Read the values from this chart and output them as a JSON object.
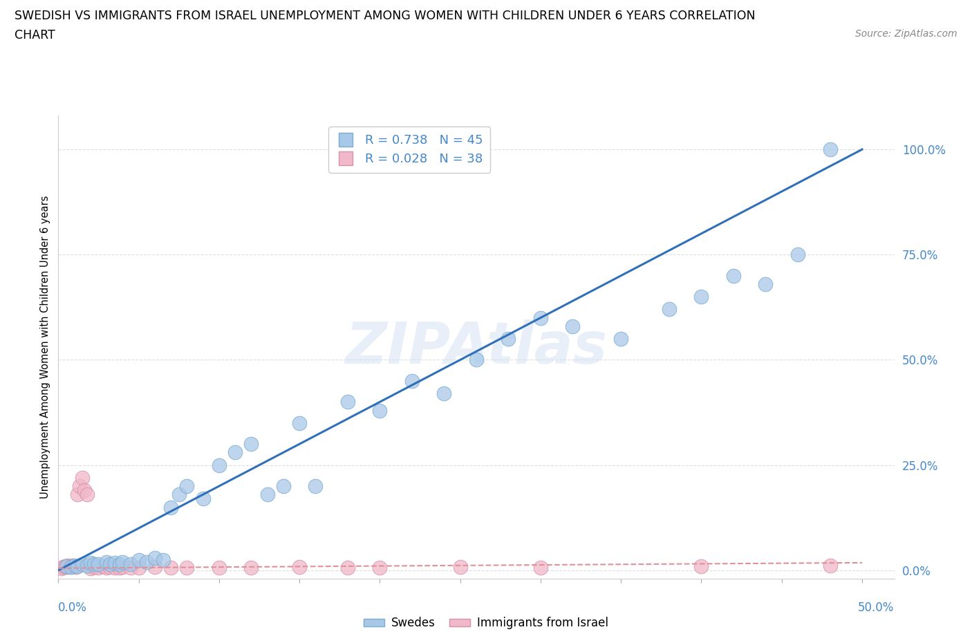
{
  "title_line1": "SWEDISH VS IMMIGRANTS FROM ISRAEL UNEMPLOYMENT AMONG WOMEN WITH CHILDREN UNDER 6 YEARS CORRELATION",
  "title_line2": "CHART",
  "source": "Source: ZipAtlas.com",
  "ylabel": "Unemployment Among Women with Children Under 6 years",
  "ytick_labels": [
    "0.0%",
    "25.0%",
    "50.0%",
    "75.0%",
    "100.0%"
  ],
  "ytick_values": [
    0.0,
    0.25,
    0.5,
    0.75,
    1.0
  ],
  "xtick_labels": [
    "0.0%",
    "50.0%"
  ],
  "xlim": [
    0.0,
    0.52
  ],
  "ylim": [
    -0.02,
    1.08
  ],
  "watermark": "ZIPAtlas",
  "legend_r_swedes": "0.738",
  "legend_n_swedes": "45",
  "legend_r_israel": "0.028",
  "legend_n_israel": "38",
  "swedes_color": "#a8c8e8",
  "israel_color": "#f0b8c8",
  "swedes_edge_color": "#7aacd0",
  "israel_edge_color": "#d890a8",
  "swedes_line_color": "#3070b8",
  "israel_line_color": "#e0909a",
  "swedes_x": [
    0.005,
    0.008,
    0.01,
    0.012,
    0.015,
    0.018,
    0.02,
    0.022,
    0.025,
    0.03,
    0.032,
    0.035,
    0.038,
    0.04,
    0.045,
    0.05,
    0.055,
    0.06,
    0.065,
    0.07,
    0.075,
    0.08,
    0.09,
    0.1,
    0.11,
    0.12,
    0.13,
    0.14,
    0.15,
    0.16,
    0.18,
    0.2,
    0.22,
    0.24,
    0.26,
    0.28,
    0.3,
    0.32,
    0.35,
    0.38,
    0.4,
    0.42,
    0.44,
    0.46,
    0.48
  ],
  "swedes_y": [
    0.01,
    0.008,
    0.012,
    0.01,
    0.015,
    0.012,
    0.018,
    0.015,
    0.015,
    0.02,
    0.015,
    0.018,
    0.015,
    0.02,
    0.015,
    0.025,
    0.02,
    0.03,
    0.025,
    0.15,
    0.18,
    0.2,
    0.17,
    0.25,
    0.28,
    0.3,
    0.18,
    0.2,
    0.35,
    0.2,
    0.4,
    0.38,
    0.45,
    0.42,
    0.5,
    0.55,
    0.6,
    0.58,
    0.55,
    0.62,
    0.65,
    0.7,
    0.68,
    0.75,
    1.0
  ],
  "israel_x": [
    0.002,
    0.003,
    0.004,
    0.005,
    0.006,
    0.007,
    0.008,
    0.009,
    0.01,
    0.011,
    0.012,
    0.013,
    0.015,
    0.016,
    0.018,
    0.02,
    0.022,
    0.025,
    0.028,
    0.03,
    0.032,
    0.035,
    0.038,
    0.04,
    0.045,
    0.05,
    0.06,
    0.07,
    0.08,
    0.1,
    0.12,
    0.15,
    0.18,
    0.2,
    0.25,
    0.3,
    0.4,
    0.48
  ],
  "israel_y": [
    0.005,
    0.008,
    0.01,
    0.008,
    0.012,
    0.008,
    0.01,
    0.012,
    0.01,
    0.008,
    0.18,
    0.2,
    0.22,
    0.19,
    0.18,
    0.005,
    0.008,
    0.007,
    0.01,
    0.006,
    0.008,
    0.007,
    0.006,
    0.008,
    0.007,
    0.006,
    0.008,
    0.006,
    0.007,
    0.006,
    0.007,
    0.008,
    0.006,
    0.007,
    0.008,
    0.007,
    0.01,
    0.012
  ],
  "swedes_line_x": [
    0.0,
    0.5
  ],
  "swedes_line_y": [
    0.0,
    1.0
  ],
  "israel_line_x": [
    0.0,
    0.5
  ],
  "israel_line_y": [
    0.005,
    0.018
  ]
}
